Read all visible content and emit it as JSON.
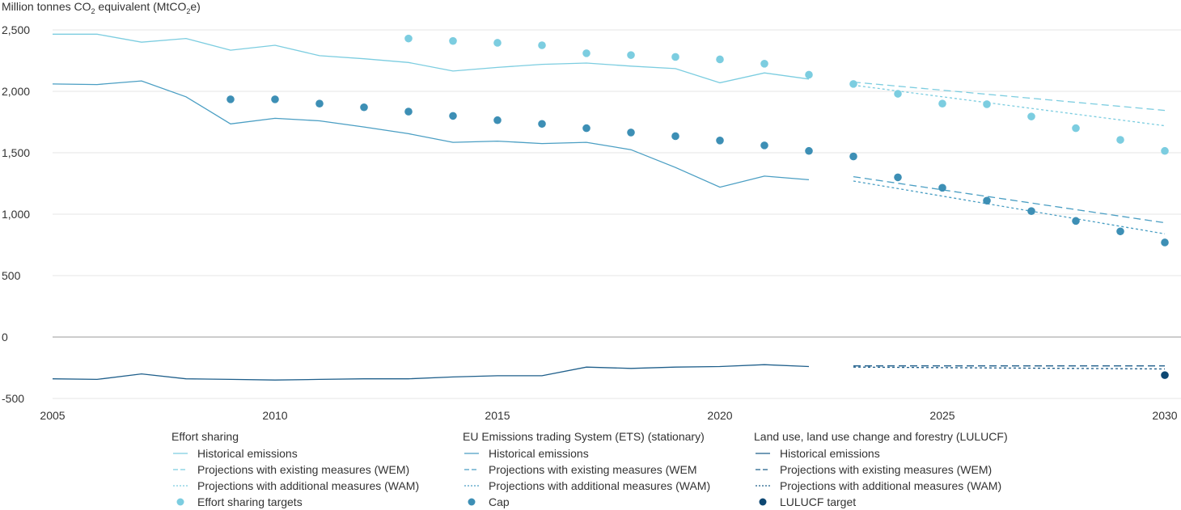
{
  "chart_data": {
    "type": "line",
    "ylabel": "Million tonnes CO2 equivalent (MtCO2e)",
    "ylabel_parts": {
      "a": "Million tonnes CO",
      "sub1": "2",
      "b": " equivalent (MtCO",
      "sub2": "2",
      "c": "e)"
    },
    "xlim": [
      2005,
      2030
    ],
    "ylim": [
      -500,
      2500
    ],
    "x_ticks": [
      "2005",
      "2010",
      "2015",
      "2020",
      "2025",
      "2030"
    ],
    "y_ticks": [
      "2,500",
      "2,000",
      "1,500",
      "1,000",
      "500",
      "0",
      "-500"
    ],
    "y_tick_values": [
      2500,
      2000,
      1500,
      1000,
      500,
      0,
      -500
    ],
    "x_tick_values": [
      2005,
      2010,
      2015,
      2020,
      2025,
      2030
    ],
    "grid": true,
    "legend_placement": "bottom",
    "colors": {
      "effort": "#7ccde0",
      "ets": "#4a9ec3",
      "lulucf": "#1f5f8b",
      "ets_cap": "#3d8fb5",
      "lulucf_target": "#0e4873"
    },
    "groups": [
      {
        "key": "effort",
        "title": "Effort sharing",
        "series": [
          {
            "name": "Historical emissions",
            "style": "solid",
            "x": [
              2005,
              2006,
              2007,
              2008,
              2009,
              2010,
              2011,
              2012,
              2013,
              2014,
              2015,
              2016,
              2017,
              2018,
              2019,
              2020,
              2021,
              2022
            ],
            "y": [
              2465,
              2465,
              2400,
              2430,
              2335,
              2375,
              2290,
              2265,
              2235,
              2165,
              2195,
              2220,
              2230,
              2205,
              2185,
              2070,
              2150,
              2100
            ]
          },
          {
            "name": "Projections with existing measures (WEM)",
            "style": "dashed",
            "x": [
              2023,
              2030
            ],
            "y": [
              2075,
              1845
            ]
          },
          {
            "name": "Projections with additional measures (WAM)",
            "style": "dotted",
            "x": [
              2023,
              2030
            ],
            "y": [
              2050,
              1720
            ]
          },
          {
            "name": "Effort sharing targets",
            "style": "marker",
            "x": [
              2013,
              2014,
              2015,
              2016,
              2017,
              2018,
              2019,
              2020,
              2021,
              2022,
              2023,
              2024,
              2025,
              2026,
              2027,
              2028,
              2029,
              2030
            ],
            "y": [
              2430,
              2410,
              2395,
              2375,
              2310,
              2295,
              2280,
              2260,
              2225,
              2135,
              2060,
              1980,
              1900,
              1895,
              1795,
              1700,
              1605,
              1515
            ]
          }
        ]
      },
      {
        "key": "ets",
        "title": "EU Emissions trading System (ETS) (stationary)",
        "series": [
          {
            "name": "Historical emissions",
            "style": "solid",
            "x": [
              2005,
              2006,
              2007,
              2008,
              2009,
              2010,
              2011,
              2012,
              2013,
              2014,
              2015,
              2016,
              2017,
              2018,
              2019,
              2020,
              2021,
              2022
            ],
            "y": [
              2060,
              2055,
              2085,
              1955,
              1735,
              1780,
              1760,
              1710,
              1655,
              1585,
              1595,
              1575,
              1585,
              1525,
              1380,
              1220,
              1310,
              1280
            ]
          },
          {
            "name": "Projections with existing measures (WEM",
            "style": "dashed",
            "x": [
              2023,
              2030
            ],
            "y": [
              1305,
              930
            ]
          },
          {
            "name": "Projections with additional measures (WAM)",
            "style": "dotted",
            "x": [
              2023,
              2030
            ],
            "y": [
              1270,
              840
            ]
          },
          {
            "name": "Cap",
            "style": "marker",
            "x": [
              2009,
              2010,
              2011,
              2012,
              2013,
              2014,
              2015,
              2016,
              2017,
              2018,
              2019,
              2020,
              2021,
              2022,
              2023,
              2024,
              2025,
              2026,
              2027,
              2028,
              2029,
              2030
            ],
            "y": [
              1935,
              1935,
              1900,
              1870,
              1835,
              1800,
              1765,
              1735,
              1700,
              1665,
              1635,
              1600,
              1560,
              1515,
              1470,
              1300,
              1215,
              1110,
              1025,
              945,
              860,
              770
            ]
          }
        ]
      },
      {
        "key": "lulucf",
        "title": "Land use, land use change and forestry (LULUCF)",
        "series": [
          {
            "name": "Historical emissions",
            "style": "solid",
            "x": [
              2005,
              2006,
              2007,
              2008,
              2009,
              2010,
              2011,
              2012,
              2013,
              2014,
              2015,
              2016,
              2017,
              2018,
              2019,
              2020,
              2021,
              2022
            ],
            "y": [
              -340,
              -345,
              -300,
              -340,
              -345,
              -350,
              -345,
              -340,
              -340,
              -325,
              -315,
              -315,
              -245,
              -255,
              -245,
              -240,
              -225,
              -240
            ]
          },
          {
            "name": "Projections with existing measures (WEM)",
            "style": "dashed",
            "x": [
              2023,
              2030
            ],
            "y": [
              -235,
              -235
            ]
          },
          {
            "name": "Projections with additional measures (WAM)",
            "style": "dotted",
            "x": [
              2023,
              2030
            ],
            "y": [
              -245,
              -260
            ]
          },
          {
            "name": "LULUCF target",
            "style": "marker",
            "x": [
              2030
            ],
            "y": [
              -310
            ]
          }
        ]
      }
    ]
  }
}
